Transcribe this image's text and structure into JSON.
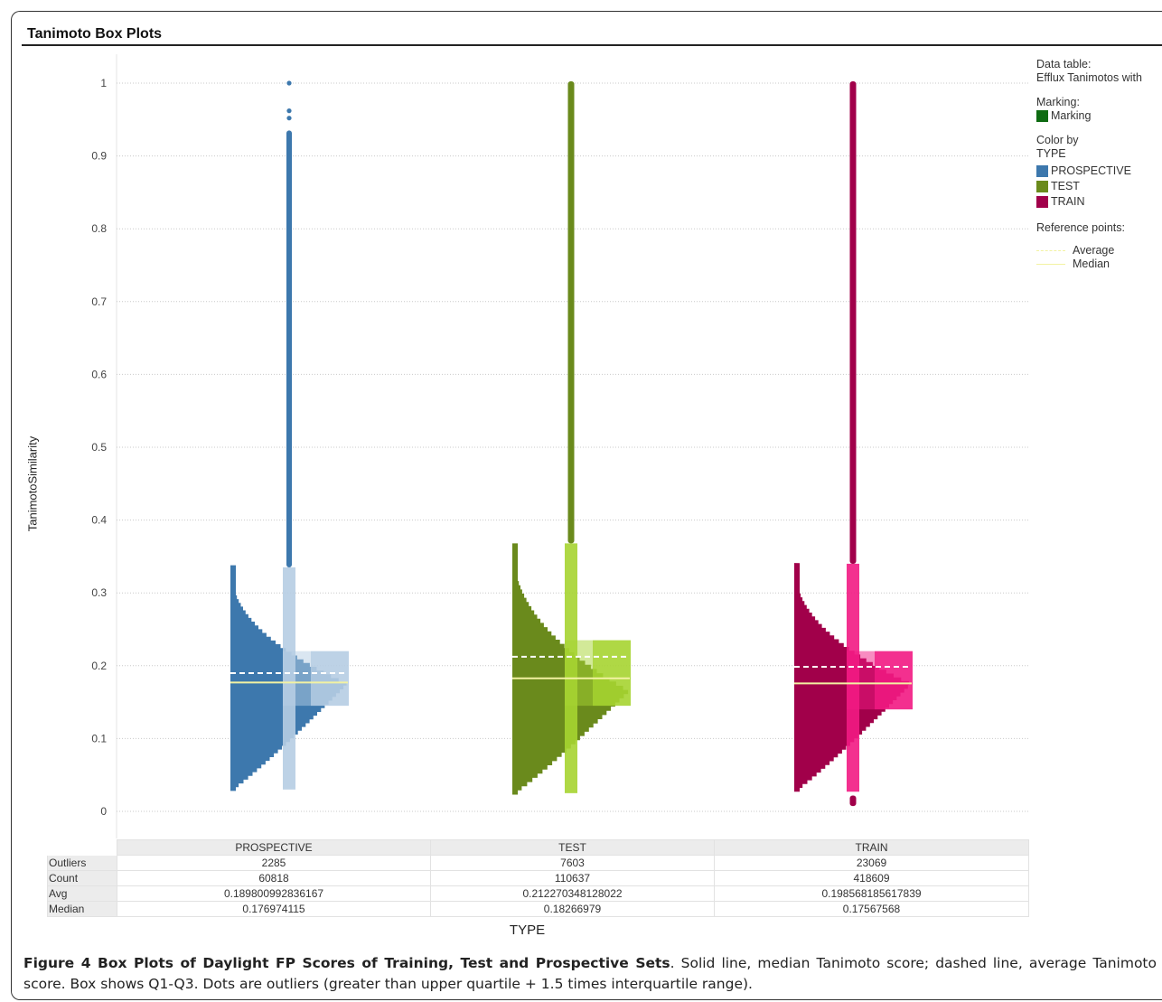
{
  "panel_title": "Tanimoto Box Plots",
  "legend": {
    "data_table_label": "Data table:",
    "data_table_value": "Efflux Tanimotos with",
    "marking_label": "Marking:",
    "marking_item": "Marking",
    "marking_color": "#0e6b12",
    "color_by_label": "Color by",
    "color_by_value": "TYPE",
    "items": [
      {
        "label": "PROSPECTIVE",
        "color": "#3d78ad"
      },
      {
        "label": "TEST",
        "color": "#6a8a1c"
      },
      {
        "label": "TRAIN",
        "color": "#a1004a"
      }
    ],
    "reference_label": "Reference points:",
    "reference_items": [
      "Average",
      "Median"
    ],
    "reference_color": "#f2f2a2"
  },
  "table": {
    "row_labels": [
      "Outliers",
      "Count",
      "Avg",
      "Median"
    ],
    "columns": [
      {
        "header": "PROSPECTIVE",
        "values": [
          "2285",
          "60818",
          "0.189800992836167",
          "0.176974115"
        ]
      },
      {
        "header": "TEST",
        "values": [
          "7603",
          "110637",
          "0.212270348128022",
          "0.18266979"
        ]
      },
      {
        "header": "TRAIN",
        "values": [
          "23069",
          "418609",
          "0.198568185617839",
          "0.17567568"
        ]
      }
    ]
  },
  "caption": {
    "bold": "Figure 4 Box Plots of Daylight FP Scores of Training, Test and Prospective Sets",
    "rest": ". Solid line, median Tanimoto score; dashed line, average Tanimoto score. Box shows Q1-Q3. Dots are outliers (greater than upper quartile + 1.5 times interquartile range)."
  },
  "chart_data": {
    "type": "box",
    "title": "Tanimoto Box Plots",
    "xlabel": "TYPE",
    "ylabel": "TanimotoSimilarity",
    "ylim": [
      0,
      1
    ],
    "yticks": [
      "0",
      "0.1",
      "0.2",
      "0.3",
      "0.4",
      "0.5",
      "0.6",
      "0.7",
      "0.8",
      "0.9",
      "1"
    ],
    "grid": true,
    "legend_position": "right",
    "categories": [
      "PROSPECTIVE",
      "TEST",
      "TRAIN"
    ],
    "series": [
      {
        "name": "PROSPECTIVE",
        "color": "#3d78ad",
        "box_color": "#b6cde3",
        "whisker_low": 0.03,
        "q1": 0.145,
        "median": 0.176974115,
        "average": 0.189800992836167,
        "q3": 0.22,
        "whisker_high": 0.335,
        "outlier_range": [
          0.335,
          1.0
        ],
        "outliers": 2285,
        "count": 60818,
        "histogram_max": 0.338,
        "histogram_min": 0.028,
        "histogram_mode": 0.175
      },
      {
        "name": "TEST",
        "color": "#6a8a1c",
        "box_color": "#a6d431",
        "whisker_low": 0.025,
        "q1": 0.145,
        "median": 0.18266979,
        "average": 0.212270348128022,
        "q3": 0.235,
        "whisker_high": 0.368,
        "outlier_range": [
          0.368,
          1.0
        ],
        "outliers": 7603,
        "count": 110637,
        "histogram_max": 0.368,
        "histogram_min": 0.023,
        "histogram_mode": 0.165
      },
      {
        "name": "TRAIN",
        "color": "#a1004a",
        "box_color": "#f21a83",
        "whisker_low": 0.027,
        "q1": 0.14,
        "median": 0.17567568,
        "average": 0.198568185617839,
        "q3": 0.22,
        "whisker_high": 0.34,
        "outlier_range": [
          0.34,
          1.0
        ],
        "outlier_low": [
          0.011,
          0.018
        ],
        "outliers": 23069,
        "count": 418609,
        "histogram_max": 0.341,
        "histogram_min": 0.027,
        "histogram_mode": 0.175
      }
    ]
  }
}
